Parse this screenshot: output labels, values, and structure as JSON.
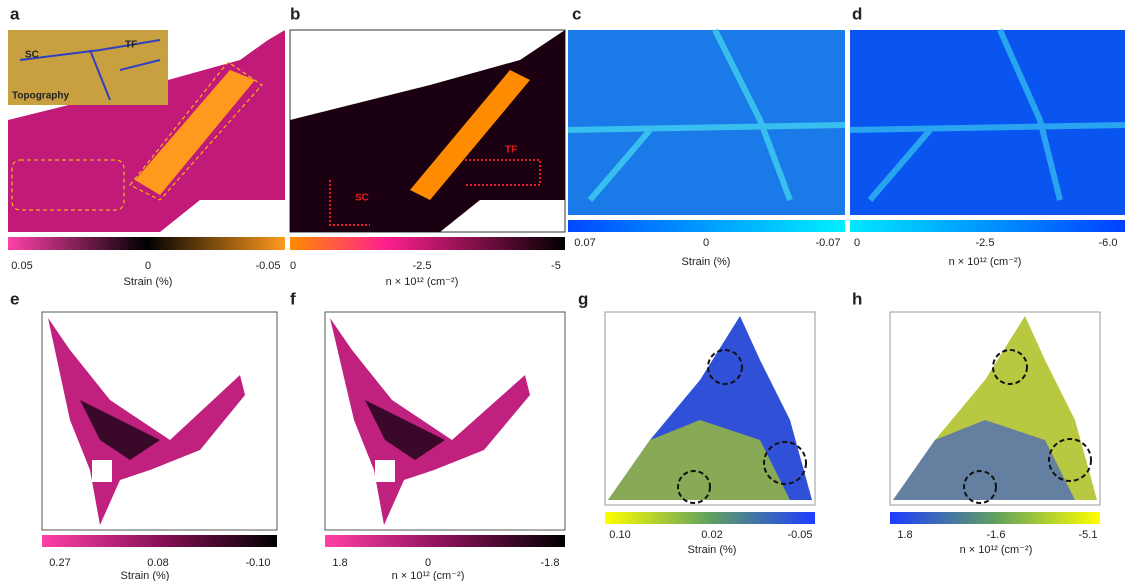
{
  "panels": [
    {
      "label": "a",
      "annotations": [
        "SC",
        "TF",
        "Topography"
      ],
      "colorbar_ticks": [
        "0.05",
        "0",
        "-0.05"
      ],
      "colorbar_title": "Strain (%)"
    },
    {
      "label": "b",
      "annotations": [
        "SC",
        "TF"
      ],
      "colorbar_ticks": [
        "0",
        "-2.5",
        "-5"
      ],
      "colorbar_title": "n × 10¹² (cm⁻²)"
    },
    {
      "label": "c",
      "colorbar_ticks": [
        "0.07",
        "0",
        "-0.07"
      ],
      "colorbar_title": "Strain (%)"
    },
    {
      "label": "d",
      "colorbar_ticks": [
        "0",
        "-2.5",
        "-6.0"
      ],
      "colorbar_title": "n × 10¹² (cm⁻²)"
    },
    {
      "label": "e",
      "colorbar_ticks": [
        "0.27",
        "0.08",
        "-0.10"
      ],
      "colorbar_title": "Strain (%)"
    },
    {
      "label": "f",
      "colorbar_ticks": [
        "1.8",
        "0",
        "-1.8"
      ],
      "colorbar_title": "n × 10¹² (cm⁻²)"
    },
    {
      "label": "g",
      "colorbar_ticks": [
        "0.10",
        "0.02",
        "-0.05"
      ],
      "colorbar_title": "Strain (%)"
    },
    {
      "label": "h",
      "colorbar_ticks": [
        "1.8",
        "-1.6",
        "-5.1"
      ],
      "colorbar_title": "n × 10¹² (cm⁻²)"
    }
  ]
}
